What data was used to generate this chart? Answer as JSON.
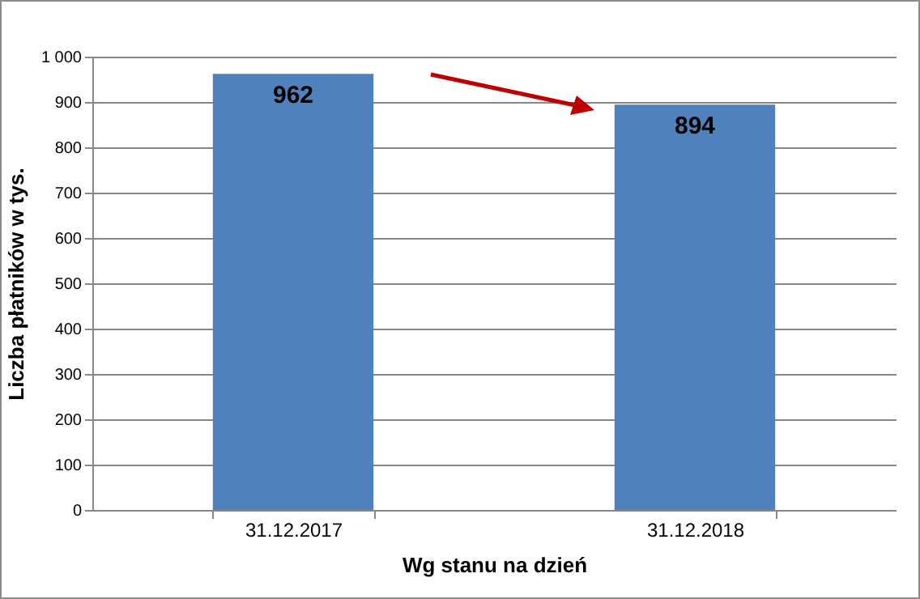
{
  "chart_data": {
    "type": "bar",
    "xlabel": "Wg stanu na dzień",
    "ylabel": "Liczba płatników w tys.",
    "categories": [
      "31.12.2017",
      "31.12.2018"
    ],
    "values": [
      962,
      894
    ],
    "color": "#4f81bd",
    "ylim": [
      0,
      1000
    ],
    "yticks": [
      0,
      100,
      200,
      300,
      400,
      500,
      600,
      700,
      800,
      900,
      {
        "value": 1000,
        "label": "1 000"
      }
    ],
    "grid": "y",
    "data_labels": true
  }
}
